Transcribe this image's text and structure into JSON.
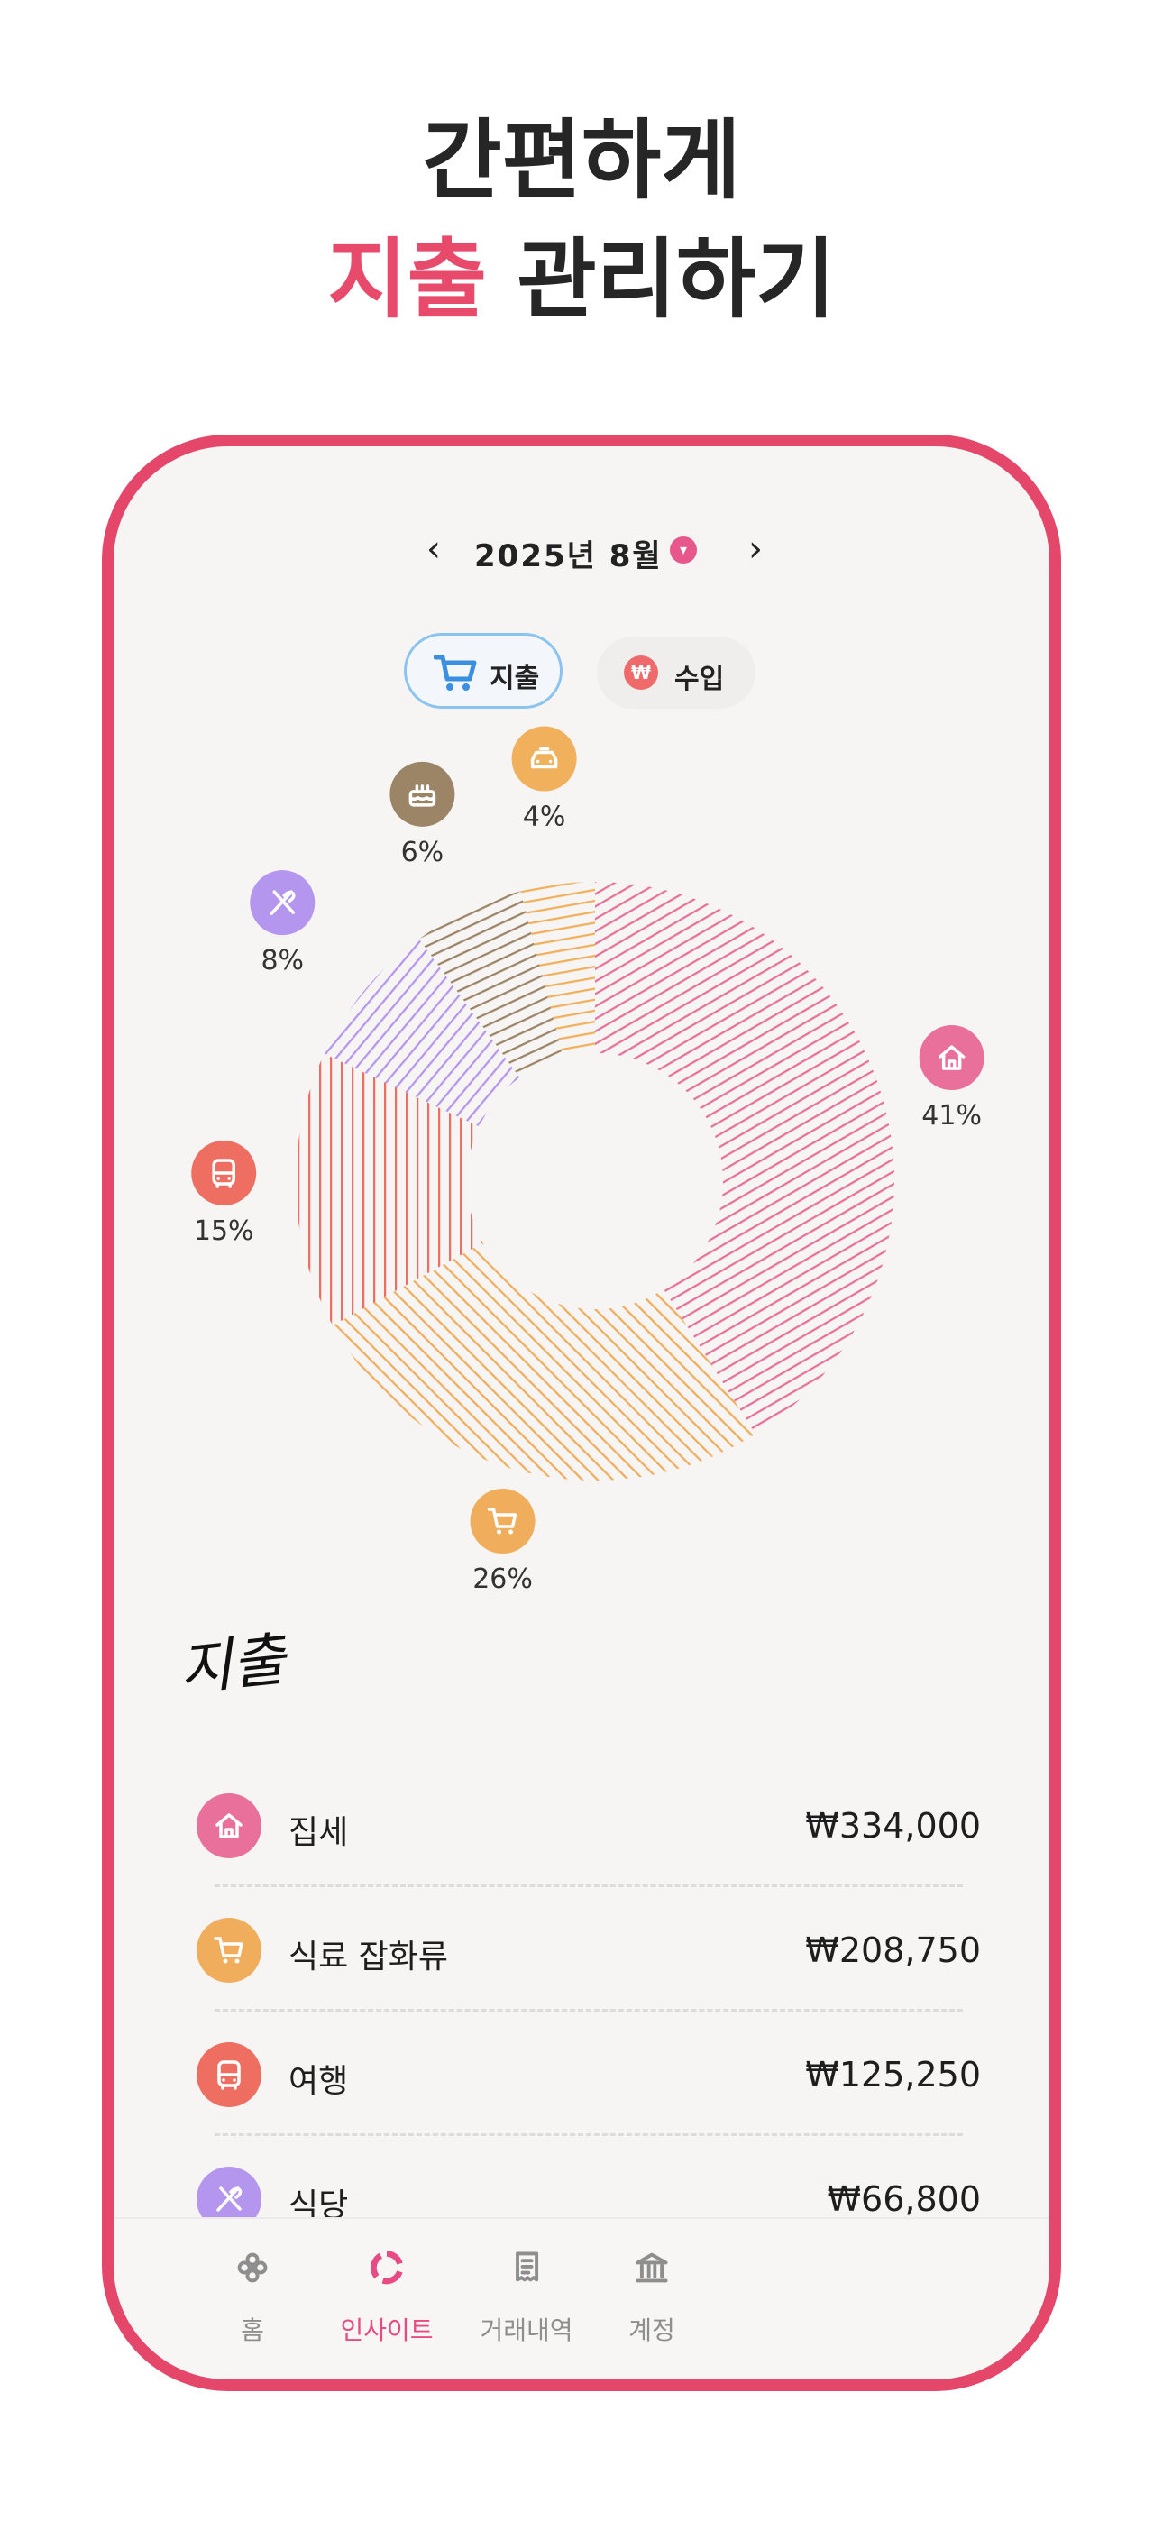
{
  "promo": {
    "line1": "간편하게",
    "line2_accent": "지출",
    "line2_rest": " 관리하기",
    "accent_color": "#e84a6c"
  },
  "month": {
    "label": "2025년 8월",
    "prev_icon": "chevron-left-icon",
    "next_icon": "chevron-right-icon",
    "dropdown_icon": "chevron-down-icon"
  },
  "type_toggle": {
    "expense_label": "지출",
    "income_label": "수입",
    "income_icon_text": "₩"
  },
  "chart_data": {
    "type": "pie",
    "style": "donut, hatched fill",
    "slices": [
      {
        "category": "집세",
        "percent": 41,
        "label": "41%",
        "color": "#e8709a",
        "icon": "house-icon"
      },
      {
        "category": "식료 잡화류",
        "percent": 26,
        "label": "26%",
        "color": "#f0ad5c",
        "icon": "cart-icon"
      },
      {
        "category": "여행",
        "percent": 15,
        "label": "15%",
        "color": "#ee6f62",
        "icon": "bus-icon"
      },
      {
        "category": "식당",
        "percent": 8,
        "label": "8%",
        "color": "#b596ee",
        "icon": "fork-knife-icon"
      },
      {
        "category": "",
        "percent": 6,
        "label": "6%",
        "color": "#9c8466",
        "icon": "cake-icon"
      },
      {
        "category": "",
        "percent": 4,
        "label": "4%",
        "color": "#f0b05c",
        "icon": "taxi-icon"
      }
    ]
  },
  "section": {
    "title": "지출"
  },
  "expenses": [
    {
      "name": "집세",
      "amount": "₩334,000",
      "color": "#e8709a",
      "icon": "house-icon"
    },
    {
      "name": "식료 잡화류",
      "amount": "₩208,750",
      "color": "#f0ad5c",
      "icon": "cart-icon"
    },
    {
      "name": "여행",
      "amount": "₩125,250",
      "color": "#ee6f62",
      "icon": "bus-icon"
    },
    {
      "name": "식당",
      "amount": "₩66,800",
      "color": "#b596ee",
      "icon": "fork-knife-icon"
    }
  ],
  "nav": [
    {
      "label": "홈",
      "icon": "flower-icon",
      "active": false
    },
    {
      "label": "인사이트",
      "icon": "ring-chart-icon",
      "active": true
    },
    {
      "label": "거래내역",
      "icon": "receipt-icon",
      "active": false
    },
    {
      "label": "계정",
      "icon": "bank-icon",
      "active": false
    }
  ]
}
